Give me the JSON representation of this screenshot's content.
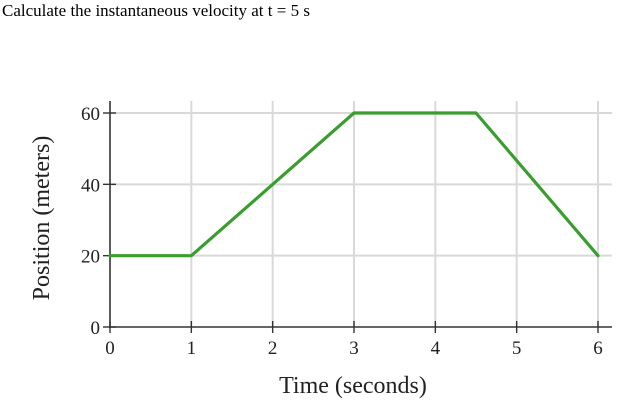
{
  "question": "Calculate the instantaneous velocity at t = 5 s",
  "chart_data": {
    "type": "line",
    "xlabel": "Time (seconds)",
    "ylabel": "Position (meters)",
    "xlim": [
      0,
      6
    ],
    "ylim": [
      0,
      60
    ],
    "x_ticks": [
      0,
      1,
      2,
      3,
      4,
      5,
      6
    ],
    "y_ticks": [
      0,
      20,
      40,
      60
    ],
    "grid": true,
    "series": [
      {
        "color": "#3a9d2f",
        "points": [
          [
            0,
            20
          ],
          [
            1,
            20
          ],
          [
            3,
            60
          ],
          [
            4.5,
            60
          ],
          [
            6,
            20
          ]
        ]
      }
    ]
  }
}
